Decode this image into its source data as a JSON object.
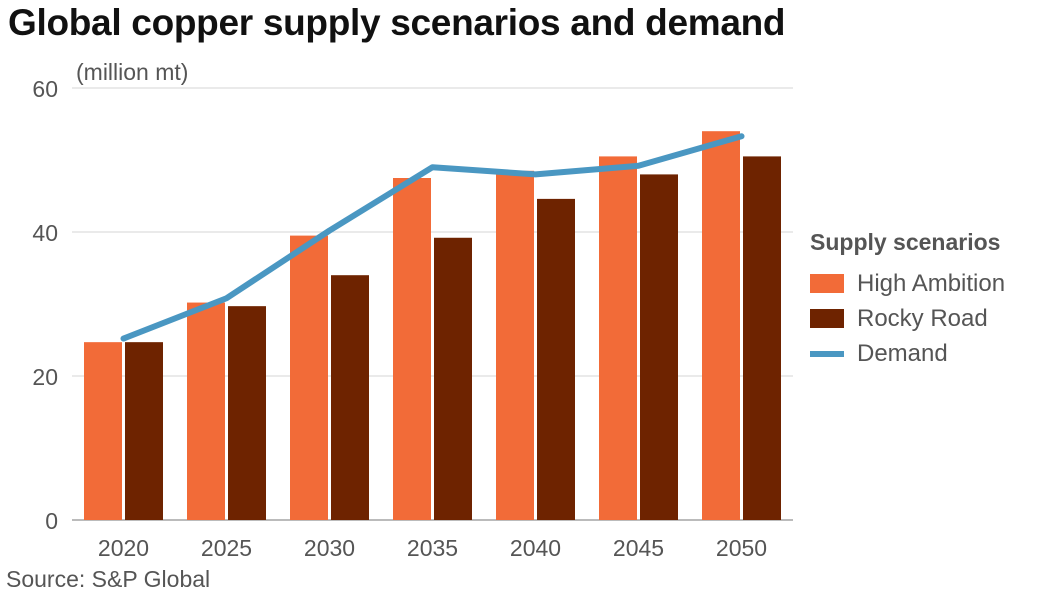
{
  "header": {
    "title": "Global copper supply scenarios and demand"
  },
  "footer": {
    "source": "Source: S&P Global"
  },
  "legend": {
    "title": "Supply scenarios",
    "items": [
      {
        "label": "High Ambition",
        "color": "#f26b38",
        "kind": "bar"
      },
      {
        "label": "Rocky Road",
        "color": "#6e2300",
        "kind": "bar"
      },
      {
        "label": "Demand",
        "color": "#4a97c2",
        "kind": "line"
      }
    ]
  },
  "chart_data": {
    "type": "bar",
    "title": "Global copper supply scenarios and demand",
    "ylabel": "(million mt)",
    "xlabel": "",
    "categories": [
      "2020",
      "2025",
      "2030",
      "2035",
      "2040",
      "2045",
      "2050"
    ],
    "ylim": [
      0,
      60
    ],
    "yticks": [
      0,
      20,
      40,
      60
    ],
    "grid": true,
    "legend_position": "right",
    "series": [
      {
        "name": "High Ambition",
        "type": "bar",
        "color": "#f26b38",
        "values": [
          24.7,
          30.2,
          39.5,
          47.5,
          48.5,
          50.5,
          54.0
        ]
      },
      {
        "name": "Rocky Road",
        "type": "bar",
        "color": "#6e2300",
        "values": [
          24.7,
          29.7,
          34.0,
          39.2,
          44.6,
          48.0,
          50.5
        ]
      },
      {
        "name": "Demand",
        "type": "line",
        "color": "#4a97c2",
        "values": [
          25.2,
          30.8,
          40.2,
          49.0,
          48.0,
          49.2,
          53.3
        ]
      }
    ]
  }
}
